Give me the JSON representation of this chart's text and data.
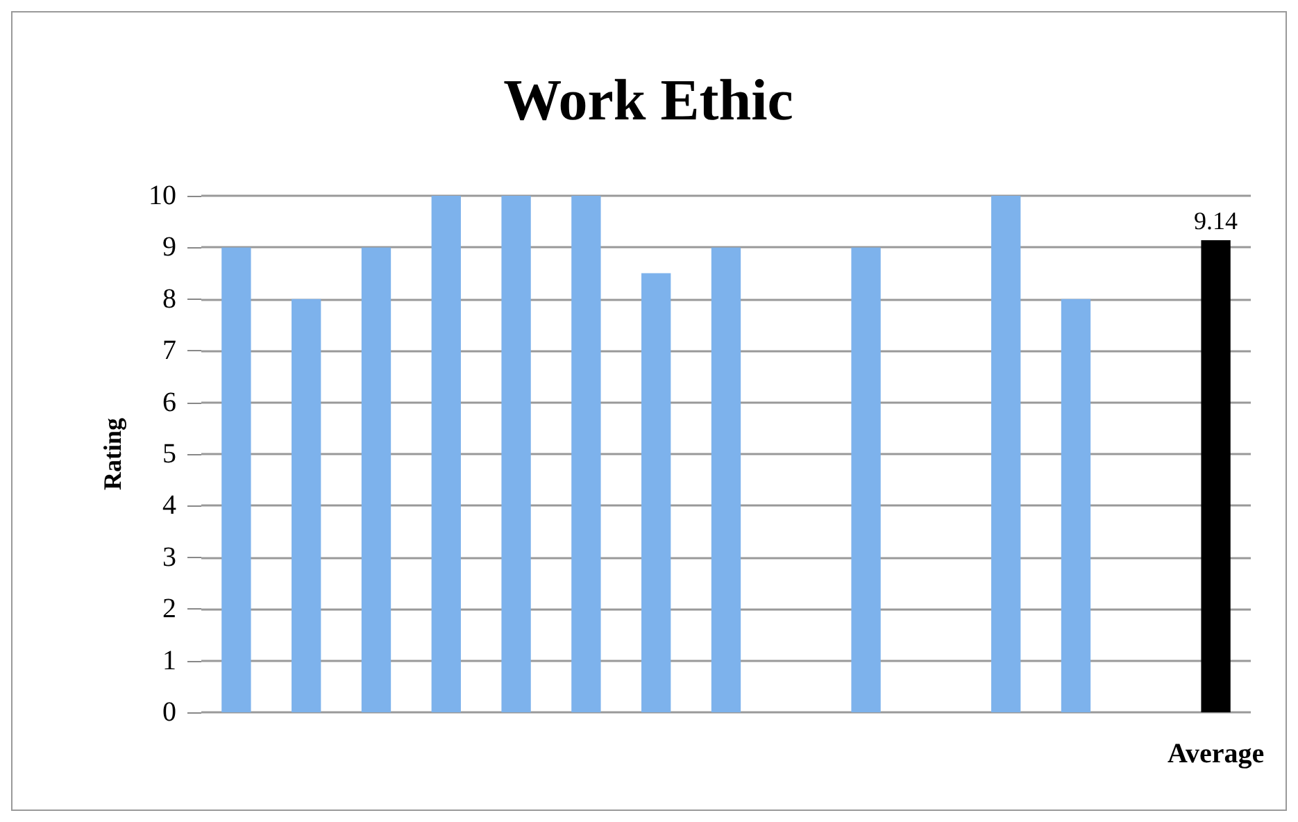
{
  "chart_data": {
    "type": "bar",
    "title": "Work Ethic",
    "ylabel": "Rating",
    "categories": [
      null,
      null,
      null,
      null,
      null,
      null,
      null,
      null,
      null,
      null,
      null,
      null,
      null,
      null,
      "Average"
    ],
    "values": [
      9,
      8,
      9,
      10,
      10,
      10,
      8.5,
      9,
      null,
      9,
      null,
      10,
      8,
      null,
      9.14
    ],
    "colors": [
      "#7db2ec",
      "#7db2ec",
      "#7db2ec",
      "#7db2ec",
      "#7db2ec",
      "#7db2ec",
      "#7db2ec",
      "#7db2ec",
      "#7db2ec",
      "#7db2ec",
      "#7db2ec",
      "#7db2ec",
      "#7db2ec",
      "#7db2ec",
      "#000000"
    ],
    "value_labels": [
      null,
      null,
      null,
      null,
      null,
      null,
      null,
      null,
      null,
      null,
      null,
      null,
      null,
      null,
      "9.14"
    ],
    "ylim": [
      0,
      10
    ],
    "yticks": [
      0,
      1,
      2,
      3,
      4,
      5,
      6,
      7,
      8,
      9,
      10
    ],
    "grid": "y"
  }
}
